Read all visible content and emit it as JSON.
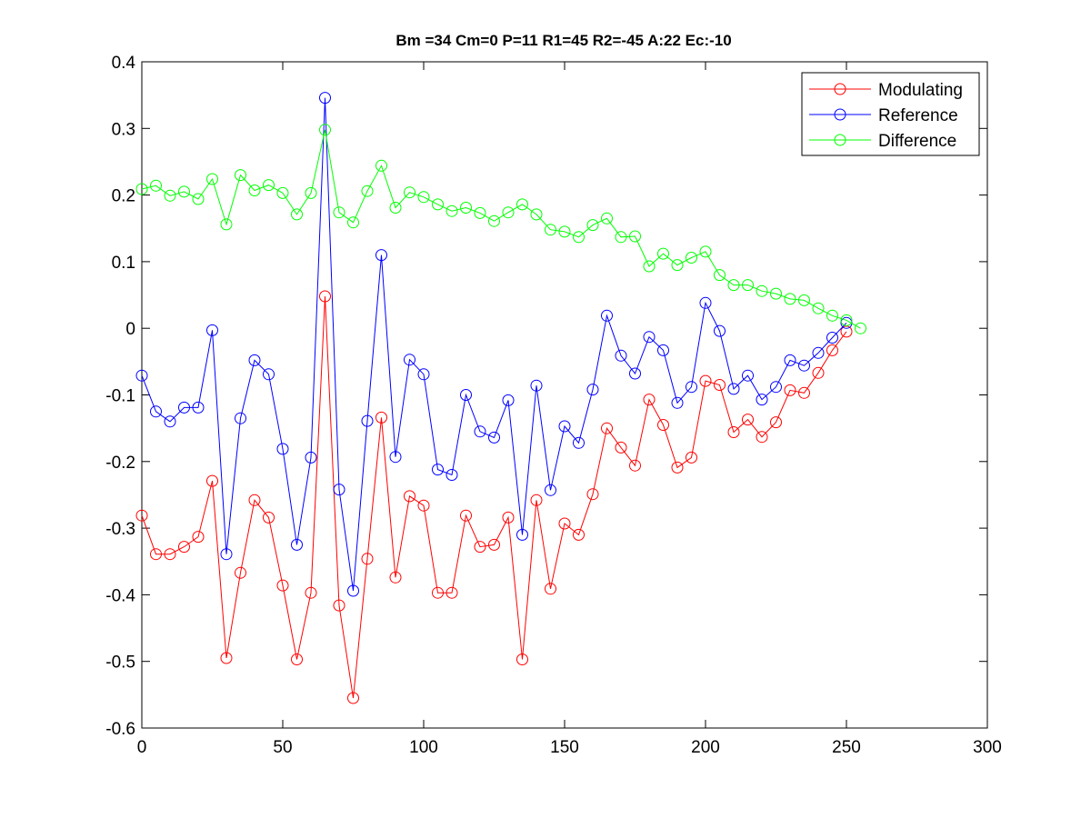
{
  "chart_data": {
    "type": "line",
    "title": "Bm =34  Cm=0  P=11  R1=45  R2=-45  A:22  Ec:-10",
    "xlabel": "",
    "ylabel": "",
    "xlim": [
      0,
      300
    ],
    "ylim": [
      -0.6,
      0.4
    ],
    "xticks": [
      "0",
      "50",
      "100",
      "150",
      "200",
      "250",
      "300"
    ],
    "yticks": [
      "-0.6",
      "-0.5",
      "-0.4",
      "-0.3",
      "-0.2",
      "-0.1",
      "0",
      "0.1",
      "0.2",
      "0.3",
      "0.4"
    ],
    "grid": false,
    "legend_position": "top-right",
    "marker": "circle",
    "x": [
      0,
      5,
      10,
      15,
      20,
      25,
      30,
      35,
      40,
      45,
      50,
      55,
      60,
      65,
      70,
      75,
      80,
      85,
      90,
      95,
      100,
      105,
      110,
      115,
      120,
      125,
      130,
      135,
      140,
      145,
      150,
      155,
      160,
      165,
      170,
      175,
      180,
      185,
      190,
      195,
      200,
      205,
      210,
      215,
      220,
      225,
      230,
      235,
      240,
      245,
      250,
      255
    ],
    "series": [
      {
        "name": "Modulating",
        "color": "#ff0000",
        "values": [
          -0.281,
          -0.339,
          -0.339,
          -0.328,
          -0.313,
          -0.229,
          -0.495,
          -0.367,
          -0.258,
          -0.284,
          -0.386,
          -0.497,
          -0.397,
          0.048,
          -0.416,
          -0.555,
          -0.346,
          -0.134,
          -0.374,
          -0.252,
          -0.266,
          -0.397,
          -0.397,
          -0.281,
          -0.328,
          -0.325,
          -0.284,
          -0.497,
          -0.258,
          -0.391,
          -0.293,
          -0.31,
          -0.249,
          -0.15,
          -0.179,
          -0.206,
          -0.107,
          -0.145,
          -0.209,
          -0.194,
          -0.079,
          -0.085,
          -0.156,
          -0.137,
          -0.163,
          -0.141,
          -0.093,
          -0.097,
          -0.067,
          -0.033,
          -0.005,
          null
        ]
      },
      {
        "name": "Reference",
        "color": "#0000ff",
        "values": [
          -0.071,
          -0.125,
          -0.14,
          -0.119,
          -0.119,
          -0.003,
          -0.339,
          -0.135,
          -0.048,
          -0.069,
          -0.181,
          -0.325,
          -0.194,
          0.346,
          -0.242,
          -0.394,
          -0.139,
          0.11,
          -0.193,
          -0.047,
          -0.069,
          -0.212,
          -0.22,
          -0.1,
          -0.155,
          -0.164,
          -0.108,
          -0.31,
          -0.086,
          -0.243,
          -0.147,
          -0.172,
          -0.092,
          0.019,
          -0.041,
          -0.068,
          -0.013,
          -0.033,
          -0.112,
          -0.088,
          0.038,
          -0.004,
          -0.091,
          -0.071,
          -0.107,
          -0.088,
          -0.048,
          -0.056,
          -0.037,
          -0.014,
          0.008,
          null
        ]
      },
      {
        "name": "Difference",
        "color": "#00ff00",
        "values": [
          0.209,
          0.214,
          0.199,
          0.205,
          0.194,
          0.224,
          0.156,
          0.23,
          0.207,
          0.215,
          0.203,
          0.171,
          0.203,
          0.298,
          0.174,
          0.159,
          0.206,
          0.244,
          0.181,
          0.204,
          0.197,
          0.186,
          0.176,
          0.181,
          0.173,
          0.161,
          0.174,
          0.186,
          0.171,
          0.148,
          0.145,
          0.137,
          0.155,
          0.165,
          0.137,
          0.138,
          0.093,
          0.112,
          0.095,
          0.106,
          0.115,
          0.08,
          0.065,
          0.065,
          0.056,
          0.052,
          0.044,
          0.042,
          0.03,
          0.019,
          0.012,
          0.0
        ]
      }
    ]
  }
}
